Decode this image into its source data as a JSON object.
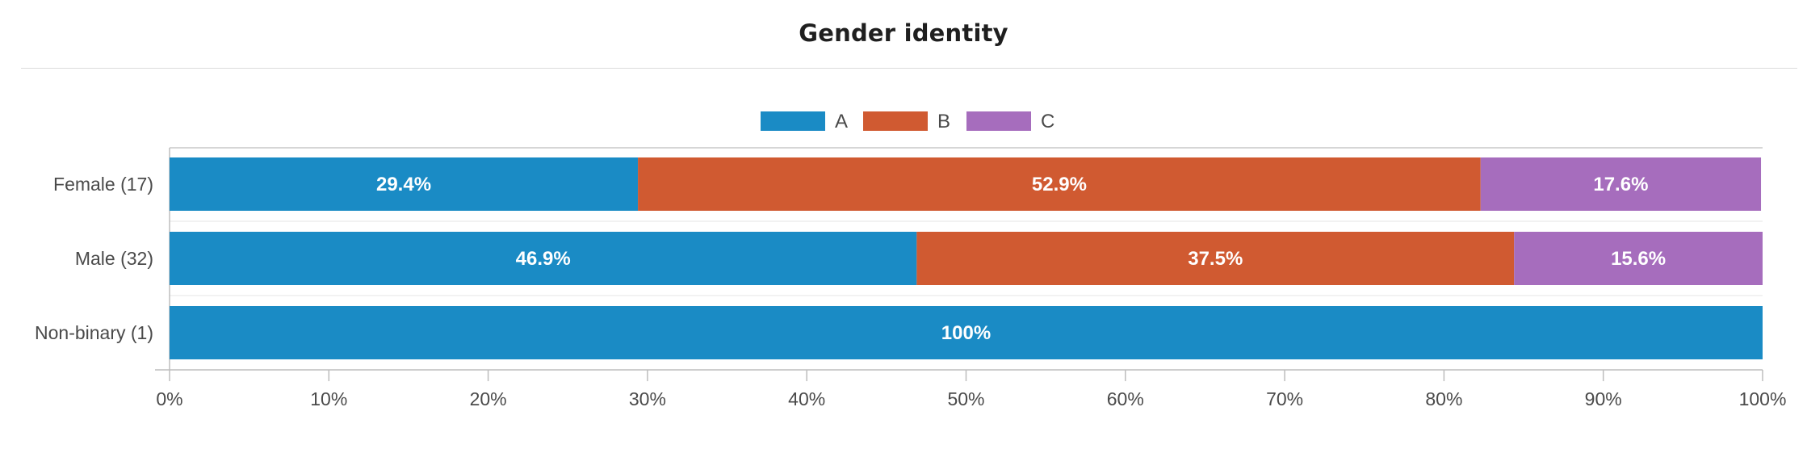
{
  "chart_data": {
    "type": "bar",
    "orientation": "horizontal",
    "stacked": true,
    "title": "Gender identity",
    "categories": [
      "Female (17)",
      "Male (32)",
      "Non-binary (1)"
    ],
    "series": [
      {
        "name": "A",
        "color": "#1a8bc5",
        "values": [
          29.4,
          46.9,
          100
        ]
      },
      {
        "name": "B",
        "color": "#d05a31",
        "values": [
          52.9,
          37.5,
          0
        ]
      },
      {
        "name": "C",
        "color": "#a66dbd",
        "values": [
          17.6,
          15.6,
          0
        ]
      }
    ],
    "data_labels": [
      [
        "29.4%",
        "52.9%",
        "17.6%"
      ],
      [
        "46.9%",
        "37.5%",
        "15.6%"
      ],
      [
        "100%",
        "",
        ""
      ]
    ],
    "xlim": [
      0,
      100
    ],
    "x_ticks": [
      "0%",
      "10%",
      "20%",
      "30%",
      "40%",
      "50%",
      "60%",
      "70%",
      "80%",
      "90%",
      "100%"
    ],
    "legend": "top-center",
    "grid": false
  }
}
